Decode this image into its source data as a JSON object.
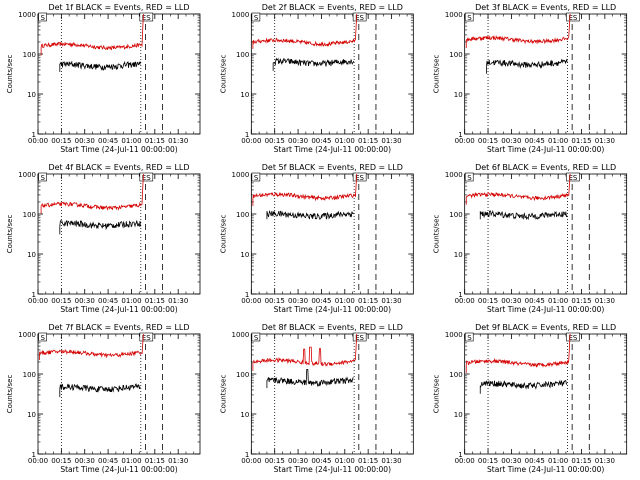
{
  "chart_data": [
    {
      "type": "line",
      "title": "Det 1f BLACK = Events, RED = LLD",
      "ylabel": "Counts/sec",
      "xlabel": "Start Time (24-Jul-11 00:00:00)",
      "x_ticks": [
        "00:00",
        "00:15",
        "00:30",
        "00:45",
        "01:00",
        "01:15",
        "01:30"
      ],
      "y_ticks": [
        "1",
        "10",
        "100",
        "1000"
      ],
      "ylim": [
        1,
        1000
      ],
      "scale": "log",
      "x_range_minutes": [
        0,
        104
      ],
      "vlines_dotted_min": [
        15,
        66
      ],
      "vlines_dashed_min": [
        69,
        80
      ],
      "markers": [
        {
          "label": "S",
          "min": 1
        },
        {
          "label": "ES",
          "min": 66
        }
      ],
      "series": [
        {
          "color": "#d40000",
          "start": 2,
          "end": 67,
          "level": 160,
          "spike_end": 1000
        },
        {
          "color": "#000000",
          "start": 14,
          "end": 66,
          "level": 52
        }
      ]
    },
    {
      "type": "line",
      "title": "Det 2f BLACK = Events, RED = LLD",
      "ylabel": "Counts/sec",
      "xlabel": "Start Time (24-Jul-11 00:00:00)",
      "x_ticks": [
        "00:00",
        "00:15",
        "00:30",
        "00:45",
        "01:00",
        "01:15",
        "01:30"
      ],
      "y_ticks": [
        "1",
        "10",
        "100",
        "1000"
      ],
      "ylim": [
        1,
        1000
      ],
      "scale": "log",
      "x_range_minutes": [
        0,
        104
      ],
      "vlines_dotted_min": [
        15,
        66
      ],
      "vlines_dashed_min": [
        69,
        80
      ],
      "markers": [
        {
          "label": "S",
          "min": 1
        },
        {
          "label": "ES",
          "min": 66
        }
      ],
      "series": [
        {
          "color": "#d40000",
          "start": 1,
          "end": 67,
          "level": 200,
          "spike_end": 1000
        },
        {
          "color": "#000000",
          "start": 14,
          "end": 66,
          "level": 62
        }
      ]
    },
    {
      "type": "line",
      "title": "Det 3f BLACK = Events, RED = LLD",
      "ylabel": "Counts/sec",
      "xlabel": "Start Time (24-Jul-11 00:00:00)",
      "x_ticks": [
        "00:00",
        "00:15",
        "00:30",
        "00:45",
        "01:00",
        "01:15",
        "01:30"
      ],
      "y_ticks": [
        "1",
        "10",
        "100",
        "1000"
      ],
      "ylim": [
        1,
        1000
      ],
      "scale": "log",
      "x_range_minutes": [
        0,
        104
      ],
      "vlines_dotted_min": [
        15,
        66
      ],
      "vlines_dashed_min": [
        69,
        80
      ],
      "markers": [
        {
          "label": "S",
          "min": 1
        },
        {
          "label": "ES",
          "min": 66
        }
      ],
      "series": [
        {
          "color": "#d40000",
          "start": 1,
          "end": 67,
          "level": 230,
          "spike_end": 1000
        },
        {
          "color": "#000000",
          "start": 14,
          "end": 66,
          "level": 58
        }
      ]
    },
    {
      "type": "line",
      "title": "Det 4f BLACK = Events, RED = LLD",
      "ylabel": "Counts/sec",
      "xlabel": "Start Time (24-Jul-11 00:00:00)",
      "x_ticks": [
        "00:00",
        "00:15",
        "00:30",
        "00:45",
        "01:00",
        "01:15",
        "01:30"
      ],
      "y_ticks": [
        "1",
        "10",
        "100",
        "1000"
      ],
      "ylim": [
        1,
        1000
      ],
      "scale": "log",
      "x_range_minutes": [
        0,
        104
      ],
      "vlines_dotted_min": [
        15,
        66
      ],
      "vlines_dashed_min": [
        69,
        80
      ],
      "markers": [
        {
          "label": "S",
          "min": 1
        },
        {
          "label": "ES",
          "min": 66
        }
      ],
      "series": [
        {
          "color": "#d40000",
          "start": 2,
          "end": 67,
          "level": 160,
          "spike_end": 1000
        },
        {
          "color": "#000000",
          "start": 14,
          "end": 66,
          "level": 55
        }
      ]
    },
    {
      "type": "line",
      "title": "Det 5f BLACK = Events, RED = LLD",
      "ylabel": "Counts/sec",
      "xlabel": "Start Time (24-Jul-11 00:00:00)",
      "x_ticks": [
        "00:00",
        "00:15",
        "00:30",
        "00:45",
        "01:00",
        "01:15",
        "01:30"
      ],
      "y_ticks": [
        "1",
        "10",
        "100",
        "1000"
      ],
      "ylim": [
        1,
        1000
      ],
      "scale": "log",
      "x_range_minutes": [
        0,
        104
      ],
      "vlines_dotted_min": [
        15,
        66
      ],
      "vlines_dashed_min": [
        69,
        80
      ],
      "markers": [
        {
          "label": "S",
          "min": 1
        },
        {
          "label": "ES",
          "min": 66
        }
      ],
      "series": [
        {
          "color": "#d40000",
          "start": 1,
          "end": 67,
          "level": 280,
          "spike_end": 1000
        },
        {
          "color": "#000000",
          "start": 10,
          "end": 66,
          "level": 95
        }
      ]
    },
    {
      "type": "line",
      "title": "Det 6f BLACK = Events, RED = LLD",
      "ylabel": "Counts/sec",
      "xlabel": "Start Time (24-Jul-11 00:00:00)",
      "x_ticks": [
        "00:00",
        "00:15",
        "00:30",
        "00:45",
        "01:00",
        "01:15",
        "01:30"
      ],
      "y_ticks": [
        "1",
        "10",
        "100",
        "1000"
      ],
      "ylim": [
        1,
        1000
      ],
      "scale": "log",
      "x_range_minutes": [
        0,
        104
      ],
      "vlines_dotted_min": [
        15,
        66
      ],
      "vlines_dashed_min": [
        69,
        80
      ],
      "markers": [
        {
          "label": "S",
          "min": 1
        },
        {
          "label": "ES",
          "min": 66
        }
      ],
      "series": [
        {
          "color": "#d40000",
          "start": 1,
          "end": 67,
          "level": 280,
          "spike_end": 1000
        },
        {
          "color": "#000000",
          "start": 10,
          "end": 66,
          "level": 95
        }
      ]
    },
    {
      "type": "line",
      "title": "Det 7f BLACK = Events, RED = LLD",
      "ylabel": "Counts/sec",
      "xlabel": "Start Time (24-Jul-11 00:00:00)",
      "x_ticks": [
        "00:00",
        "00:15",
        "00:30",
        "00:45",
        "01:00",
        "01:15",
        "01:30"
      ],
      "y_ticks": [
        "1",
        "10",
        "100",
        "1000"
      ],
      "ylim": [
        1,
        1000
      ],
      "scale": "log",
      "x_range_minutes": [
        0,
        104
      ],
      "vlines_dotted_min": [
        15,
        66
      ],
      "vlines_dashed_min": [
        69,
        80
      ],
      "markers": [
        {
          "label": "S",
          "min": 1
        },
        {
          "label": "ES",
          "min": 66
        }
      ],
      "series": [
        {
          "color": "#d40000",
          "start": 1,
          "end": 67,
          "level": 330,
          "spike_end": 1000
        },
        {
          "color": "#000000",
          "start": 14,
          "end": 66,
          "level": 45
        }
      ]
    },
    {
      "type": "line",
      "title": "Det 8f BLACK = Events, RED = LLD",
      "ylabel": "Counts/sec",
      "xlabel": "Start Time (24-Jul-11 00:00:00)",
      "x_ticks": [
        "00:00",
        "00:15",
        "00:30",
        "00:45",
        "01:00",
        "01:15",
        "01:30"
      ],
      "y_ticks": [
        "1",
        "10",
        "100",
        "1000"
      ],
      "ylim": [
        1,
        1000
      ],
      "scale": "log",
      "x_range_minutes": [
        0,
        104
      ],
      "vlines_dotted_min": [
        15,
        66
      ],
      "vlines_dashed_min": [
        69,
        80
      ],
      "markers": [
        {
          "label": "S",
          "min": 1
        },
        {
          "label": "ES",
          "min": 66
        }
      ],
      "series": [
        {
          "color": "#d40000",
          "start": 1,
          "end": 67,
          "level": 200,
          "spike_end": 1000,
          "spikes": [
            {
              "min": 34,
              "value": 420
            },
            {
              "min": 38,
              "value": 470
            },
            {
              "min": 44,
              "value": 430
            }
          ]
        },
        {
          "color": "#000000",
          "start": 10,
          "end": 66,
          "level": 65,
          "spikes": [
            {
              "min": 36,
              "value": 130
            }
          ]
        }
      ]
    },
    {
      "type": "line",
      "title": "Det 9f BLACK = Events, RED = LLD",
      "ylabel": "Counts/sec",
      "xlabel": "Start Time (24-Jul-11 00:00:00)",
      "x_ticks": [
        "00:00",
        "00:15",
        "00:30",
        "00:45",
        "01:00",
        "01:15",
        "01:30"
      ],
      "y_ticks": [
        "1",
        "10",
        "100",
        "1000"
      ],
      "ylim": [
        1,
        1000
      ],
      "scale": "log",
      "x_range_minutes": [
        0,
        104
      ],
      "vlines_dotted_min": [
        15,
        66
      ],
      "vlines_dashed_min": [
        69,
        80
      ],
      "markers": [
        {
          "label": "S",
          "min": 1
        },
        {
          "label": "ES",
          "min": 66
        }
      ],
      "series": [
        {
          "color": "#d40000",
          "start": 1,
          "end": 67,
          "level": 190,
          "spike_end": 1000
        },
        {
          "color": "#000000",
          "start": 10,
          "end": 66,
          "level": 55
        }
      ]
    }
  ]
}
